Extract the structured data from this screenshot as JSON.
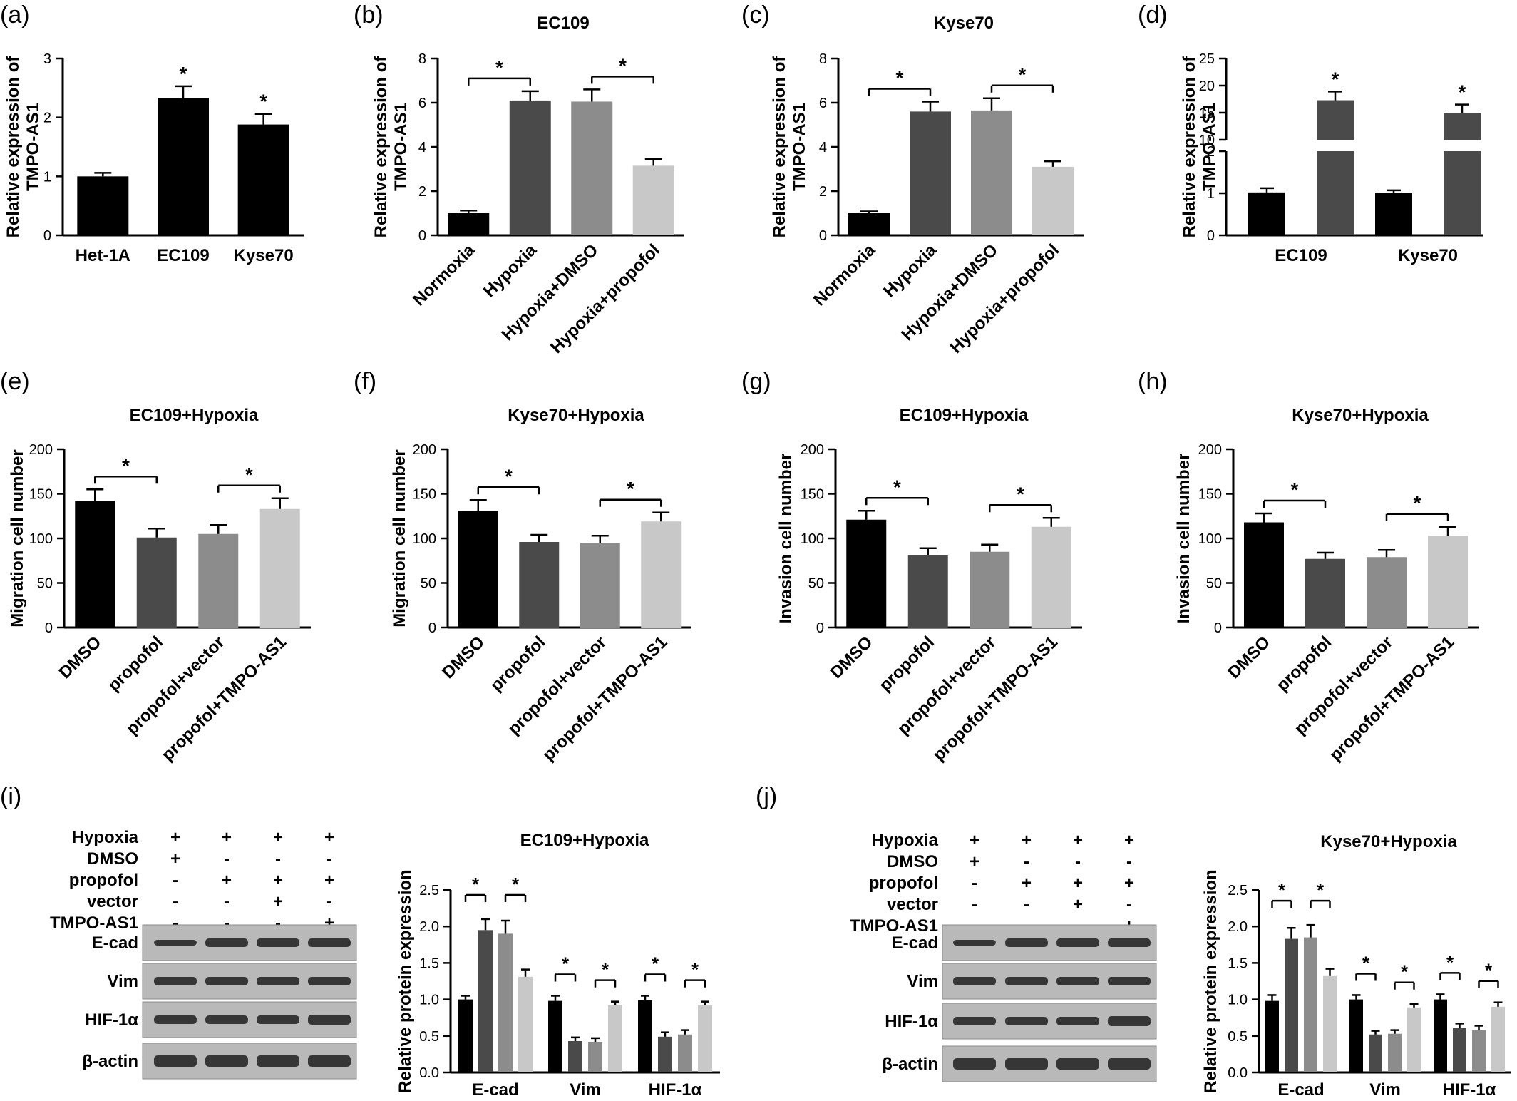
{
  "colors": {
    "c1": "#000000",
    "c2": "#4a4a4a",
    "c3": "#8c8c8c",
    "c4": "#c8c8c8",
    "axis": "#000000"
  },
  "chart_data": [
    {
      "id": "a",
      "panel": "(a)",
      "type": "bar",
      "title": "",
      "ylabel": [
        "Relative expression of",
        "TMPO-AS1"
      ],
      "categories": [
        "Het-1A",
        "EC109",
        "Kyse70"
      ],
      "values": [
        1.0,
        2.33,
        1.88
      ],
      "errors": [
        0.06,
        0.2,
        0.18
      ],
      "colors": [
        "c1",
        "c1",
        "c1"
      ],
      "ylim": [
        0,
        3
      ],
      "yticks": [
        "0",
        "1",
        "2",
        "3"
      ],
      "star_over": [
        "*",
        "*"
      ],
      "star_over_index": [
        1,
        2
      ],
      "xlabel_rotate": false
    },
    {
      "id": "b",
      "panel": "(b)",
      "type": "bar",
      "title": "EC109",
      "ylabel": [
        "Relative expression of",
        "TMPO-AS1"
      ],
      "categories": [
        "Normoxia",
        "Hypoxia",
        "Hypoxia+DMSO",
        "Hypoxia+propofol"
      ],
      "values": [
        1.0,
        6.1,
        6.05,
        3.15
      ],
      "errors": [
        0.12,
        0.42,
        0.55,
        0.3
      ],
      "colors": [
        "c1",
        "c2",
        "c3",
        "c4"
      ],
      "ylim": [
        0,
        8
      ],
      "yticks": [
        "0",
        "2",
        "4",
        "6",
        "8"
      ],
      "comparisons": [
        {
          "from": 0,
          "to": 1,
          "label": "*"
        },
        {
          "from": 2,
          "to": 3,
          "label": "*"
        }
      ],
      "xlabel_rotate": true
    },
    {
      "id": "c",
      "panel": "(c)",
      "type": "bar",
      "title": "Kyse70",
      "ylabel": [
        "Relative expression of",
        "TMPO-AS1"
      ],
      "categories": [
        "Normoxia",
        "Hypoxia",
        "Hypoxia+DMSO",
        "Hypoxia+propofol"
      ],
      "values": [
        1.0,
        5.6,
        5.65,
        3.1
      ],
      "errors": [
        0.08,
        0.45,
        0.55,
        0.25
      ],
      "colors": [
        "c1",
        "c2",
        "c3",
        "c4"
      ],
      "ylim": [
        0,
        8
      ],
      "yticks": [
        "0",
        "2",
        "4",
        "6",
        "8"
      ],
      "comparisons": [
        {
          "from": 0,
          "to": 1,
          "label": "*"
        },
        {
          "from": 2,
          "to": 3,
          "label": "*"
        }
      ],
      "xlabel_rotate": true
    },
    {
      "id": "d",
      "panel": "(d)",
      "type": "bar",
      "title": "",
      "ylabel": [
        "Relative expression of",
        "TMPO-AS1"
      ],
      "categories": [
        "EC109",
        "Kyse70"
      ],
      "series": [
        {
          "values": [
            1.02,
            1.0
          ],
          "errors": [
            0.1,
            0.07
          ],
          "color": "c1"
        },
        {
          "values": [
            17.3,
            15.0
          ],
          "errors": [
            1.6,
            1.5
          ],
          "color": "c2"
        }
      ],
      "broken_axis": {
        "lower": [
          0,
          2
        ],
        "upper": [
          10,
          25
        ]
      },
      "yticks_lower": [
        "0",
        "1",
        "2"
      ],
      "yticks_upper": [
        "10",
        "15",
        "20",
        "25"
      ],
      "star_over": [
        "*",
        "*"
      ]
    },
    {
      "id": "e",
      "panel": "(e)",
      "type": "bar",
      "title": "EC109+Hypoxia",
      "ylabel": [
        "Migration cell number"
      ],
      "categories": [
        "DMSO",
        "propofol",
        "propofol+vector",
        "propofol+TMPO-AS1"
      ],
      "values": [
        142,
        101,
        105,
        133
      ],
      "errors": [
        13,
        10,
        10,
        12
      ],
      "colors": [
        "c1",
        "c2",
        "c3",
        "c4"
      ],
      "ylim": [
        0,
        200
      ],
      "yticks": [
        "0",
        "50",
        "100",
        "150",
        "200"
      ],
      "comparisons": [
        {
          "from": 0,
          "to": 1,
          "label": "*"
        },
        {
          "from": 2,
          "to": 3,
          "label": "*"
        }
      ],
      "xlabel_rotate": true
    },
    {
      "id": "f",
      "panel": "(f)",
      "type": "bar",
      "title": "Kyse70+Hypoxia",
      "ylabel": [
        "Migration cell number"
      ],
      "categories": [
        "DMSO",
        "propofol",
        "propofol+vector",
        "propofol+TMPO-AS1"
      ],
      "values": [
        131,
        96,
        95,
        119
      ],
      "errors": [
        12,
        8,
        8,
        10
      ],
      "colors": [
        "c1",
        "c2",
        "c3",
        "c4"
      ],
      "ylim": [
        0,
        200
      ],
      "yticks": [
        "0",
        "50",
        "100",
        "150",
        "200"
      ],
      "comparisons": [
        {
          "from": 0,
          "to": 1,
          "label": "*"
        },
        {
          "from": 2,
          "to": 3,
          "label": "*"
        }
      ],
      "xlabel_rotate": true
    },
    {
      "id": "g",
      "panel": "(g)",
      "type": "bar",
      "title": "EC109+Hypoxia",
      "ylabel": [
        "Invasion cell number"
      ],
      "categories": [
        "DMSO",
        "propofol",
        "propofol+vector",
        "propofol+TMPO-AS1"
      ],
      "values": [
        121,
        81,
        85,
        113
      ],
      "errors": [
        10,
        8,
        8,
        10
      ],
      "colors": [
        "c1",
        "c2",
        "c3",
        "c4"
      ],
      "ylim": [
        0,
        200
      ],
      "yticks": [
        "0",
        "50",
        "100",
        "150",
        "200"
      ],
      "comparisons": [
        {
          "from": 0,
          "to": 1,
          "label": "*"
        },
        {
          "from": 2,
          "to": 3,
          "label": "*"
        }
      ],
      "xlabel_rotate": true
    },
    {
      "id": "h",
      "panel": "(h)",
      "type": "bar",
      "title": "Kyse70+Hypoxia",
      "ylabel": [
        "Invasion cell number"
      ],
      "categories": [
        "DMSO",
        "propofol",
        "propofol+vector",
        "propofol+TMPO-AS1"
      ],
      "values": [
        118,
        77,
        79,
        103
      ],
      "errors": [
        10,
        7,
        8,
        10
      ],
      "colors": [
        "c1",
        "c2",
        "c3",
        "c4"
      ],
      "ylim": [
        0,
        200
      ],
      "yticks": [
        "0",
        "50",
        "100",
        "150",
        "200"
      ],
      "comparisons": [
        {
          "from": 0,
          "to": 1,
          "label": "*"
        },
        {
          "from": 2,
          "to": 3,
          "label": "*"
        }
      ],
      "xlabel_rotate": true
    },
    {
      "id": "i",
      "panel": "(i)",
      "type": "bar",
      "title": "EC109+Hypoxia",
      "ylabel": [
        "Relative protein expression"
      ],
      "categories": [
        "E-cad",
        "Vim",
        "HIF-1α"
      ],
      "series": [
        {
          "values": [
            1.0,
            0.98,
            0.99
          ],
          "errors": [
            0.05,
            0.07,
            0.06
          ],
          "color": "c1"
        },
        {
          "values": [
            1.95,
            0.43,
            0.49
          ],
          "errors": [
            0.15,
            0.05,
            0.06
          ],
          "color": "c2"
        },
        {
          "values": [
            1.9,
            0.42,
            0.52
          ],
          "errors": [
            0.18,
            0.05,
            0.06
          ],
          "color": "c3"
        },
        {
          "values": [
            1.31,
            0.92,
            0.92
          ],
          "errors": [
            0.1,
            0.05,
            0.05
          ],
          "color": "c4"
        }
      ],
      "ylim": [
        0,
        2.5
      ],
      "yticks": [
        "0.0",
        "0.5",
        "1.0",
        "1.5",
        "2.0",
        "2.5"
      ],
      "comparisons_per_group": [
        [
          0,
          1
        ],
        [
          2,
          3
        ]
      ]
    },
    {
      "id": "j",
      "panel": "(j)",
      "type": "bar",
      "title": "Kyse70+Hypoxia",
      "ylabel": [
        "Relative protein expression"
      ],
      "categories": [
        "E-cad",
        "Vim",
        "HIF-1α"
      ],
      "series": [
        {
          "values": [
            0.98,
            1.0,
            1.0
          ],
          "errors": [
            0.08,
            0.06,
            0.07
          ],
          "color": "c1"
        },
        {
          "values": [
            1.83,
            0.52,
            0.61
          ],
          "errors": [
            0.15,
            0.05,
            0.06
          ],
          "color": "c2"
        },
        {
          "values": [
            1.85,
            0.53,
            0.58
          ],
          "errors": [
            0.17,
            0.05,
            0.06
          ],
          "color": "c3"
        },
        {
          "values": [
            1.32,
            0.89,
            0.9
          ],
          "errors": [
            0.1,
            0.05,
            0.06
          ],
          "color": "c4"
        }
      ],
      "ylim": [
        0,
        2.5
      ],
      "yticks": [
        "0.0",
        "0.5",
        "1.0",
        "1.5",
        "2.0",
        "2.5"
      ],
      "comparisons_per_group": [
        [
          0,
          1
        ],
        [
          2,
          3
        ]
      ]
    }
  ],
  "blots": [
    {
      "id": "i",
      "conditions": [
        {
          "label": "Hypoxia",
          "marks": [
            "+",
            "+",
            "+",
            "+"
          ]
        },
        {
          "label": "DMSO",
          "marks": [
            "+",
            "-",
            "-",
            "-"
          ]
        },
        {
          "label": "propofol",
          "marks": [
            "-",
            "+",
            "+",
            "+"
          ]
        },
        {
          "label": "vector",
          "marks": [
            "-",
            "-",
            "+",
            "-"
          ]
        },
        {
          "label": "TMPO-AS1",
          "marks": [
            "-",
            "-",
            "-",
            "+"
          ]
        }
      ],
      "rows": [
        "E-cad",
        "Vim",
        "HIF-1α",
        "β-actin"
      ]
    },
    {
      "id": "j",
      "conditions": [
        {
          "label": "Hypoxia",
          "marks": [
            "+",
            "+",
            "+",
            "+"
          ]
        },
        {
          "label": "DMSO",
          "marks": [
            "+",
            "-",
            "-",
            "-"
          ]
        },
        {
          "label": "propofol",
          "marks": [
            "-",
            "+",
            "+",
            "+"
          ]
        },
        {
          "label": "vector",
          "marks": [
            "-",
            "-",
            "+",
            "-"
          ]
        },
        {
          "label": "TMPO-AS1",
          "marks": [
            "-",
            "-",
            "-",
            "+"
          ]
        }
      ],
      "rows": [
        "E-cad",
        "Vim",
        "HIF-1α",
        "β-actin"
      ]
    }
  ]
}
